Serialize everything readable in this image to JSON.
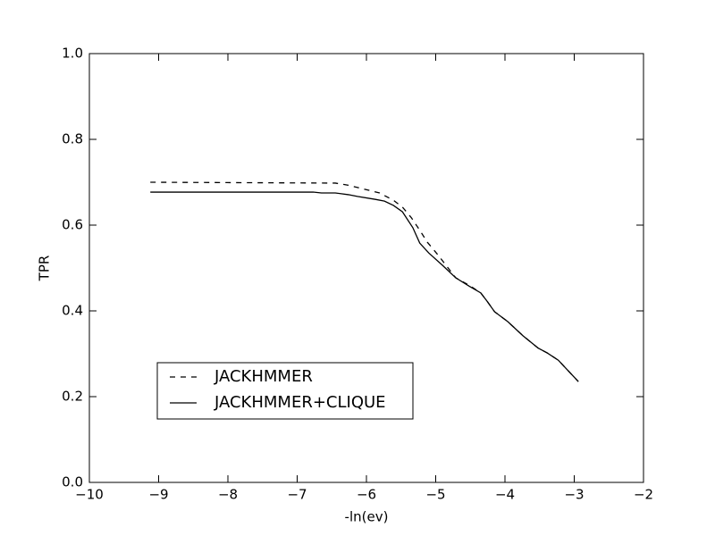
{
  "chart_data": {
    "type": "line",
    "xlabel": "-ln(ev)",
    "ylabel": "TPR",
    "xlim": [
      -10,
      -2
    ],
    "xticks": [
      {
        "value": -10,
        "label": "−10"
      },
      {
        "value": -9,
        "label": "−9"
      },
      {
        "value": -8,
        "label": "−8"
      },
      {
        "value": -7,
        "label": "−7"
      },
      {
        "value": -6,
        "label": "−6"
      },
      {
        "value": -5,
        "label": "−5"
      },
      {
        "value": -4,
        "label": "−4"
      },
      {
        "value": -3,
        "label": "−3"
      },
      {
        "value": -2,
        "label": "−2"
      }
    ],
    "ylim": [
      0,
      1
    ],
    "yticks": [
      {
        "value": 0,
        "label": "0.0"
      },
      0.2,
      0.4,
      0.6,
      0.8,
      {
        "value": 1,
        "label": "1.0"
      }
    ],
    "legend": "lower left",
    "series": [
      {
        "name": "JACKHMMER",
        "color": "#000000",
        "dash": "dashed",
        "x": [
          -9.12,
          -6.45,
          -6.26,
          -6.06,
          -5.81,
          -5.61,
          -5.48,
          -5.35,
          -5.23,
          -5.12,
          -4.97,
          -4.84,
          -4.71,
          -4.52,
          -4.35,
          -4.26,
          -4.15,
          -3.96,
          -3.74,
          -3.52,
          -3.39,
          -3.23,
          -2.94
        ],
        "values": [
          0.7,
          0.698,
          0.693,
          0.685,
          0.675,
          0.658,
          0.642,
          0.617,
          0.588,
          0.56,
          0.531,
          0.504,
          0.477,
          0.46,
          0.442,
          0.423,
          0.398,
          0.375,
          0.342,
          0.313,
          0.302,
          0.285,
          0.235
        ]
      },
      {
        "name": "JACKHMMER+CLIQUE",
        "color": "#000000",
        "dash": "solid",
        "x": [
          -9.12,
          -6.77,
          -6.65,
          -6.45,
          -6.26,
          -6.13,
          -5.87,
          -5.74,
          -5.61,
          -5.48,
          -5.33,
          -5.23,
          -5.1,
          -4.9,
          -4.71,
          -4.52,
          -4.35,
          -4.26,
          -4.15,
          -3.96,
          -3.74,
          -3.52,
          -3.39,
          -3.23,
          -2.94
        ],
        "values": [
          0.677,
          0.677,
          0.675,
          0.675,
          0.671,
          0.667,
          0.66,
          0.656,
          0.646,
          0.631,
          0.594,
          0.558,
          0.535,
          0.506,
          0.477,
          0.458,
          0.442,
          0.423,
          0.398,
          0.375,
          0.342,
          0.313,
          0.302,
          0.285,
          0.235
        ]
      }
    ]
  }
}
